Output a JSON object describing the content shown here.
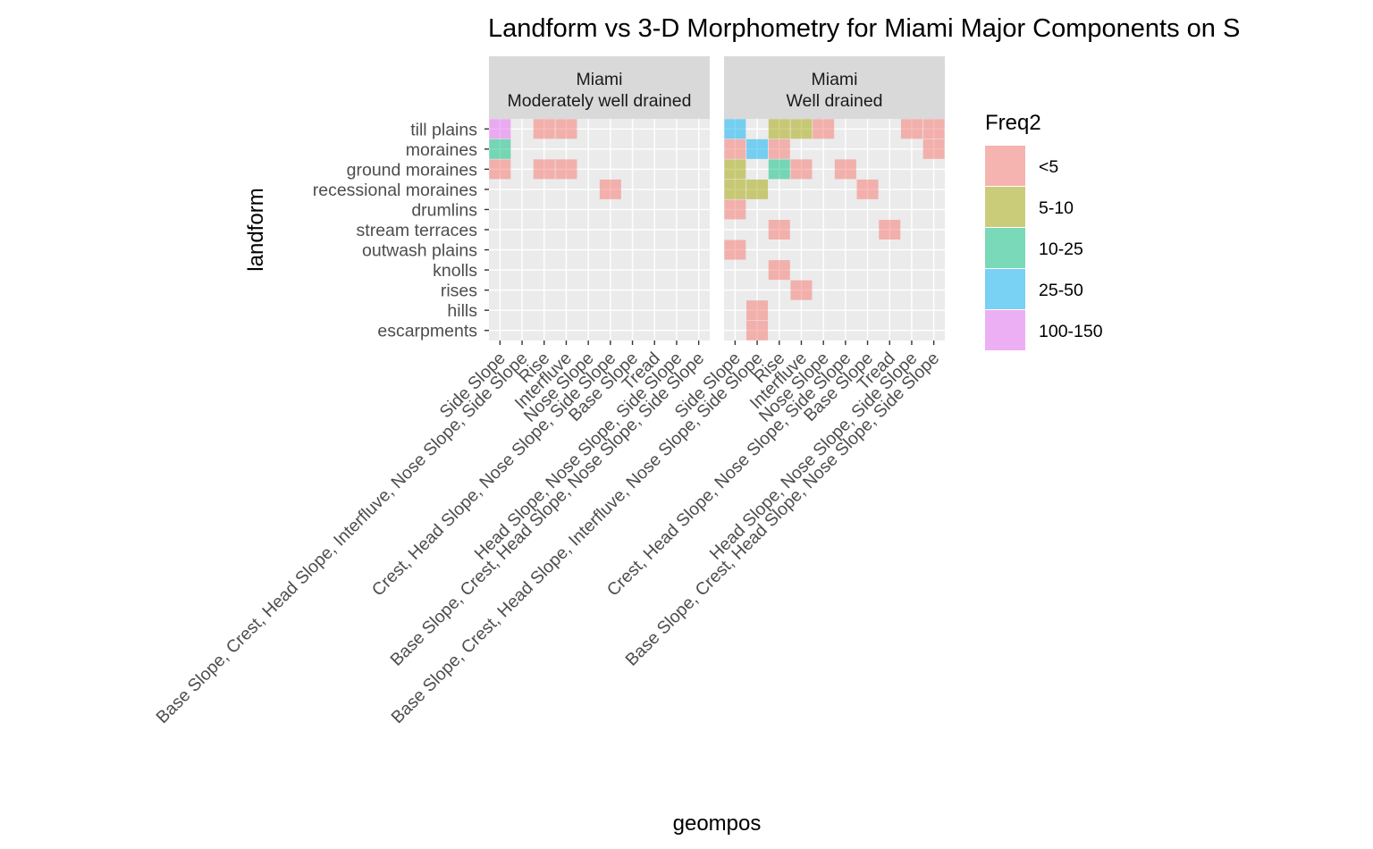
{
  "chart_data": {
    "type": "heatmap",
    "title": "Landform vs 3-D Morphometry for Miami Major Components on S",
    "xlabel": "geompos",
    "ylabel": "landform",
    "legend": {
      "title": "Freq2",
      "position": "right",
      "entries": [
        {
          "label": "<5",
          "color": "#F8766D"
        },
        {
          "label": "5-10",
          "color": "#A3A500"
        },
        {
          "label": "10-25",
          "color": "#00BF7D"
        },
        {
          "label": "25-50",
          "color": "#00B0F6"
        },
        {
          "label": "100-150",
          "color": "#E76BF3"
        }
      ]
    },
    "y_categories": [
      "till plains",
      "moraines",
      "ground moraines",
      "recessional moraines",
      "drumlins",
      "stream terraces",
      "outwash plains",
      "knolls",
      "rises",
      "hills",
      "escarpments"
    ],
    "x_categories": [
      "Side Slope",
      "Base Slope, Crest, Head Slope, Interfluve, Nose Slope, Side Slope",
      "Rise",
      "Interfluve",
      "Nose Slope",
      "Crest, Head Slope, Nose Slope, Side Slope",
      "Base Slope",
      "Tread",
      "Head Slope, Nose Slope, Side Slope",
      "Base Slope, Crest, Head Slope, Nose Slope, Side Slope"
    ],
    "grid": true,
    "panels": [
      {
        "strip": [
          "Miami",
          "Moderately well drained"
        ],
        "cells": [
          {
            "x": 0,
            "y": "till plains",
            "bin": "100-150"
          },
          {
            "x": 2,
            "y": "till plains",
            "bin": "<5"
          },
          {
            "x": 3,
            "y": "till plains",
            "bin": "<5"
          },
          {
            "x": 0,
            "y": "moraines",
            "bin": "10-25"
          },
          {
            "x": 0,
            "y": "ground moraines",
            "bin": "<5"
          },
          {
            "x": 2,
            "y": "ground moraines",
            "bin": "<5"
          },
          {
            "x": 3,
            "y": "ground moraines",
            "bin": "<5"
          },
          {
            "x": 5,
            "y": "recessional moraines",
            "bin": "<5"
          }
        ]
      },
      {
        "strip": [
          "Miami",
          "Well drained"
        ],
        "cells": [
          {
            "x": 0,
            "y": "till plains",
            "bin": "25-50"
          },
          {
            "x": 2,
            "y": "till plains",
            "bin": "5-10"
          },
          {
            "x": 3,
            "y": "till plains",
            "bin": "5-10"
          },
          {
            "x": 4,
            "y": "till plains",
            "bin": "<5"
          },
          {
            "x": 8,
            "y": "till plains",
            "bin": "<5"
          },
          {
            "x": 9,
            "y": "till plains",
            "bin": "<5"
          },
          {
            "x": 0,
            "y": "moraines",
            "bin": "<5"
          },
          {
            "x": 1,
            "y": "moraines",
            "bin": "25-50"
          },
          {
            "x": 2,
            "y": "moraines",
            "bin": "<5"
          },
          {
            "x": 9,
            "y": "moraines",
            "bin": "<5"
          },
          {
            "x": 0,
            "y": "ground moraines",
            "bin": "5-10"
          },
          {
            "x": 2,
            "y": "ground moraines",
            "bin": "10-25"
          },
          {
            "x": 3,
            "y": "ground moraines",
            "bin": "<5"
          },
          {
            "x": 5,
            "y": "ground moraines",
            "bin": "<5"
          },
          {
            "x": 0,
            "y": "recessional moraines",
            "bin": "5-10"
          },
          {
            "x": 1,
            "y": "recessional moraines",
            "bin": "5-10"
          },
          {
            "x": 6,
            "y": "recessional moraines",
            "bin": "<5"
          },
          {
            "x": 0,
            "y": "drumlins",
            "bin": "<5"
          },
          {
            "x": 2,
            "y": "stream terraces",
            "bin": "<5"
          },
          {
            "x": 7,
            "y": "stream terraces",
            "bin": "<5"
          },
          {
            "x": 0,
            "y": "outwash plains",
            "bin": "<5"
          },
          {
            "x": 2,
            "y": "knolls",
            "bin": "<5"
          },
          {
            "x": 3,
            "y": "rises",
            "bin": "<5"
          },
          {
            "x": 1,
            "y": "hills",
            "bin": "<5"
          },
          {
            "x": 1,
            "y": "escarpments",
            "bin": "<5"
          }
        ]
      }
    ]
  }
}
